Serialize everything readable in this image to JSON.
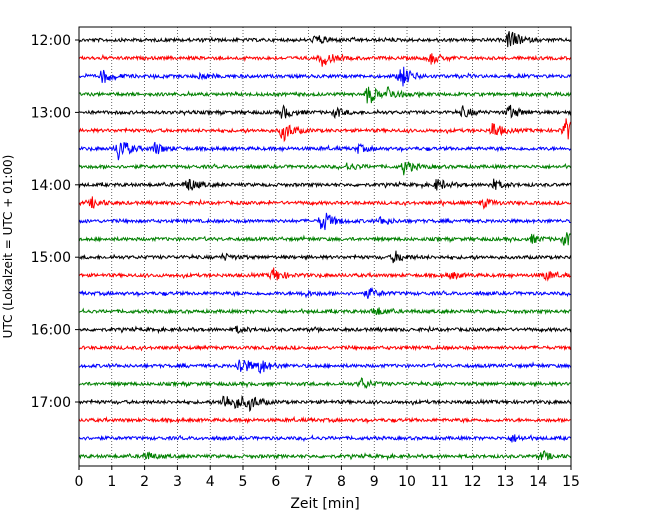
{
  "chart_data": {
    "type": "line",
    "subtype": "helicorder",
    "title": "",
    "xlabel": "Zeit  [min]",
    "ylabel": "UTC (Lokalzeit = UTC + 01:00)",
    "xlim": [
      0,
      15
    ],
    "x_ticks": [
      0,
      1,
      2,
      3,
      4,
      5,
      6,
      7,
      8,
      9,
      10,
      11,
      12,
      13,
      14,
      15
    ],
    "x_tick_labels": [
      "0",
      "1",
      "2",
      "3",
      "4",
      "5",
      "6",
      "7",
      "8",
      "9",
      "10",
      "11",
      "12",
      "13",
      "14",
      "15"
    ],
    "y_tick_labels": [
      "12:00",
      "13:00",
      "14:00",
      "15:00",
      "16:00",
      "17:00"
    ],
    "grid": "vertical dotted",
    "trace_interval_min": 15,
    "trace_colors": [
      "#000000",
      "#ff0000",
      "#0000ff",
      "#008000"
    ],
    "traces": [
      {
        "start": "12:00",
        "bursts": [
          [
            7.2,
            1.0
          ],
          [
            13.1,
            2.2
          ]
        ]
      },
      {
        "start": "12:15",
        "bursts": [
          [
            7.4,
            1.6
          ],
          [
            10.7,
            1.1
          ]
        ]
      },
      {
        "start": "12:30",
        "bursts": [
          [
            0.7,
            1.4
          ],
          [
            9.8,
            2.4
          ],
          [
            3.7,
            0.6
          ]
        ]
      },
      {
        "start": "12:45",
        "bursts": [
          [
            8.8,
            1.8
          ],
          [
            9.4,
            1.2
          ]
        ]
      },
      {
        "start": "13:00",
        "bursts": [
          [
            6.2,
            1.2
          ],
          [
            7.8,
            0.8
          ],
          [
            11.7,
            1.0
          ],
          [
            13.1,
            1.4
          ]
        ]
      },
      {
        "start": "13:15",
        "bursts": [
          [
            6.2,
            2.2
          ],
          [
            12.6,
            1.6
          ],
          [
            14.8,
            2.4
          ]
        ]
      },
      {
        "start": "13:30",
        "bursts": [
          [
            1.2,
            2.4
          ],
          [
            2.3,
            1.2
          ],
          [
            8.5,
            0.7
          ]
        ]
      },
      {
        "start": "13:45",
        "bursts": [
          [
            9.9,
            1.4
          ],
          [
            8.2,
            0.7
          ]
        ]
      },
      {
        "start": "14:00",
        "bursts": [
          [
            3.3,
            1.4
          ],
          [
            10.9,
            1.1
          ],
          [
            12.6,
            1.0
          ]
        ]
      },
      {
        "start": "14:15",
        "bursts": [
          [
            0.4,
            1.0
          ],
          [
            12.3,
            0.9
          ]
        ]
      },
      {
        "start": "14:30",
        "bursts": [
          [
            7.4,
            2.4
          ],
          [
            9.2,
            0.8
          ]
        ]
      },
      {
        "start": "14:45",
        "bursts": [
          [
            14.8,
            1.4
          ],
          [
            13.8,
            0.7
          ]
        ]
      },
      {
        "start": "15:00",
        "bursts": [
          [
            9.6,
            1.2
          ],
          [
            4.4,
            0.6
          ]
        ]
      },
      {
        "start": "15:15",
        "bursts": [
          [
            5.9,
            1.4
          ],
          [
            14.2,
            0.9
          ],
          [
            11.3,
            0.7
          ]
        ]
      },
      {
        "start": "15:30",
        "bursts": [
          [
            8.8,
            1.0
          ],
          [
            6.8,
            0.6
          ]
        ]
      },
      {
        "start": "15:45",
        "bursts": [
          [
            9.0,
            0.9
          ]
        ]
      },
      {
        "start": "16:00",
        "bursts": [
          [
            4.8,
            0.6
          ]
        ]
      },
      {
        "start": "16:15",
        "bursts": []
      },
      {
        "start": "16:30",
        "bursts": [
          [
            4.9,
            2.0
          ],
          [
            5.5,
            1.4
          ]
        ]
      },
      {
        "start": "16:45",
        "bursts": [
          [
            8.6,
            1.0
          ]
        ]
      },
      {
        "start": "17:00",
        "bursts": [
          [
            4.4,
            1.6
          ],
          [
            4.8,
            1.1
          ],
          [
            5.2,
            1.2
          ]
        ]
      },
      {
        "start": "17:15",
        "bursts": []
      },
      {
        "start": "17:30",
        "bursts": [
          [
            13.2,
            0.7
          ]
        ]
      },
      {
        "start": "17:45",
        "bursts": [
          [
            2.0,
            0.8
          ],
          [
            14.1,
            0.8
          ]
        ]
      }
    ]
  }
}
